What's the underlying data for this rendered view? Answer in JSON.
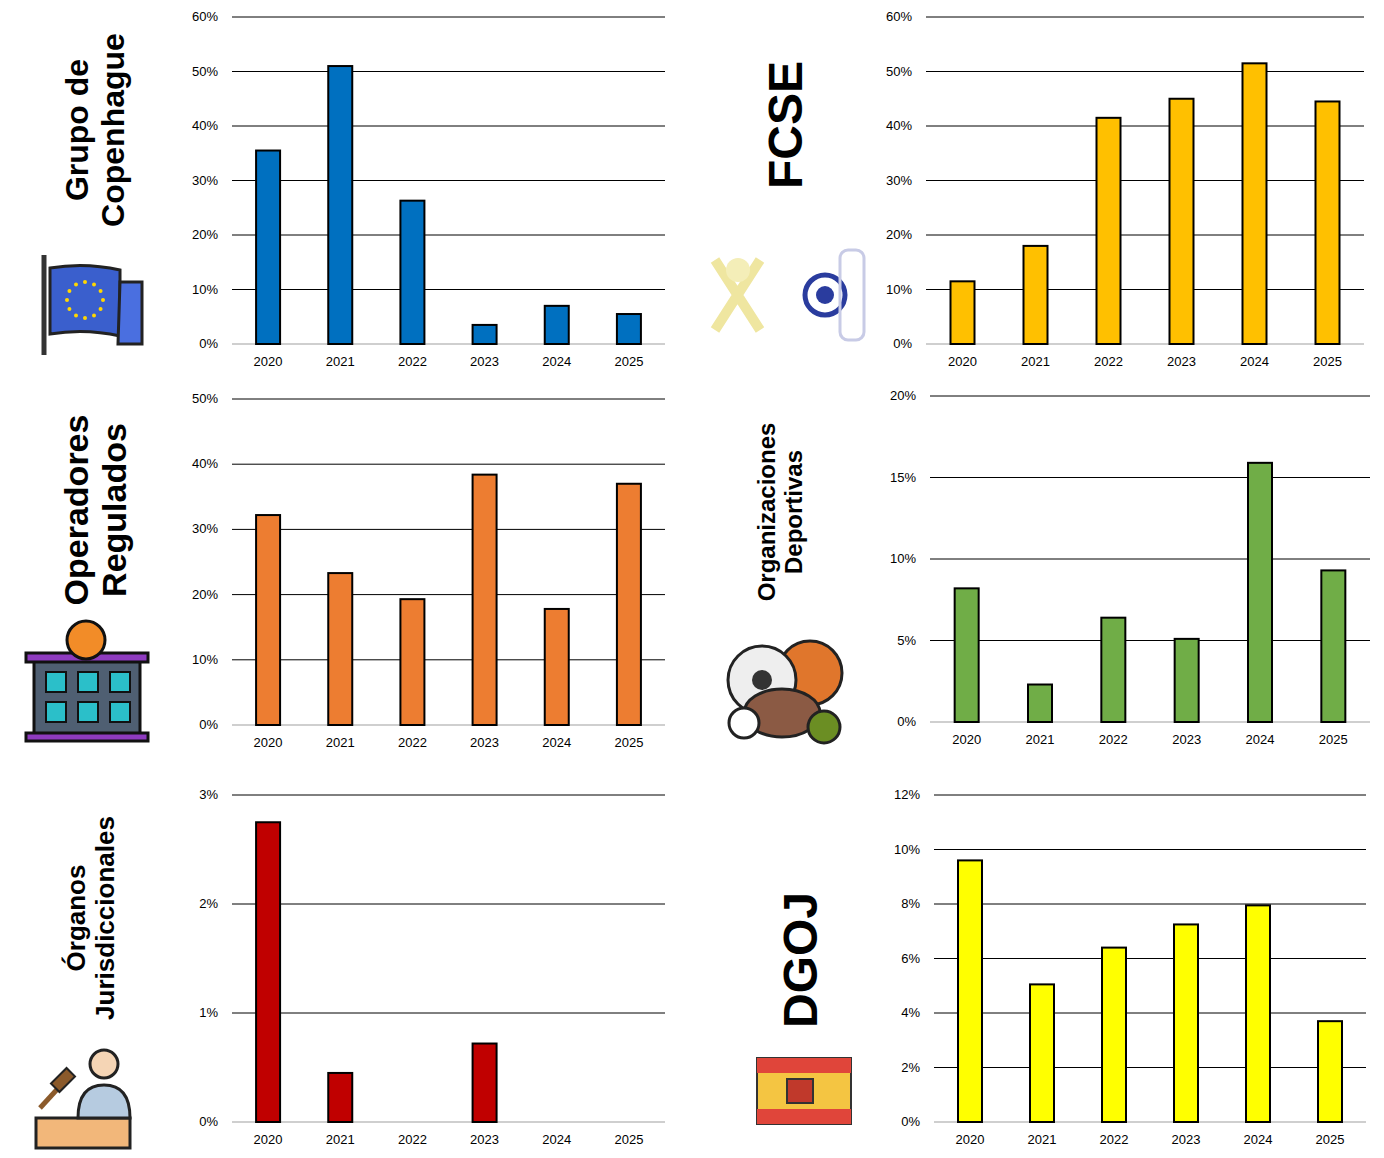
{
  "chart_data": [
    {
      "type": "bar",
      "title": "Grupo de Copenhague",
      "categories": [
        "2020",
        "2021",
        "2022",
        "2023",
        "2024",
        "2025"
      ],
      "values": [
        35.5,
        51,
        26.3,
        3.5,
        7,
        5.5
      ],
      "color": "#0070c0",
      "ylim": [
        0,
        60
      ],
      "yticks": [
        {
          "value": 0,
          "label": "0%"
        },
        {
          "value": 10,
          "label": "10%"
        },
        {
          "value": 20,
          "label": "20%"
        },
        {
          "value": 30,
          "label": "30%"
        },
        {
          "value": 40,
          "label": "40%"
        },
        {
          "value": 50,
          "label": "50%"
        },
        {
          "value": 60,
          "label": "60%"
        }
      ],
      "grid": true
    },
    {
      "type": "bar",
      "title": "FCSE",
      "categories": [
        "2020",
        "2021",
        "2022",
        "2023",
        "2024",
        "2025"
      ],
      "values": [
        11.5,
        18,
        41.5,
        45,
        51.5,
        44.5
      ],
      "color": "#ffc000",
      "ylim": [
        0,
        60
      ],
      "yticks": [
        {
          "value": 0,
          "label": "0%"
        },
        {
          "value": 10,
          "label": "10%"
        },
        {
          "value": 20,
          "label": "20%"
        },
        {
          "value": 30,
          "label": "30%"
        },
        {
          "value": 40,
          "label": "40%"
        },
        {
          "value": 50,
          "label": "50%"
        },
        {
          "value": 60,
          "label": "60%"
        }
      ],
      "grid": true
    },
    {
      "type": "bar",
      "title": "Operadores Regulados",
      "categories": [
        "2020",
        "2021",
        "2022",
        "2023",
        "2024",
        "2025"
      ],
      "values": [
        32.2,
        23.3,
        19.3,
        38.4,
        17.8,
        37
      ],
      "color": "#ed7d31",
      "ylim": [
        0,
        50
      ],
      "yticks": [
        {
          "value": 0,
          "label": "0%"
        },
        {
          "value": 10,
          "label": "10%"
        },
        {
          "value": 20,
          "label": "20%"
        },
        {
          "value": 30,
          "label": "30%"
        },
        {
          "value": 40,
          "label": "40%"
        },
        {
          "value": 50,
          "label": "50%"
        }
      ],
      "grid": true
    },
    {
      "type": "bar",
      "title": "Organizaciones Deportivas",
      "categories": [
        "2020",
        "2021",
        "2022",
        "2023",
        "2024",
        "2025"
      ],
      "values": [
        8.2,
        2.3,
        6.4,
        5.1,
        15.9,
        9.3
      ],
      "color": "#70ad47",
      "ylim": [
        0,
        20
      ],
      "yticks": [
        {
          "value": 0,
          "label": "0%"
        },
        {
          "value": 5,
          "label": "5%"
        },
        {
          "value": 10,
          "label": "10%"
        },
        {
          "value": 15,
          "label": "15%"
        },
        {
          "value": 20,
          "label": "20%"
        }
      ],
      "grid": true
    },
    {
      "type": "bar",
      "title": "Órganos Jurisdiccionales",
      "categories": [
        "2020",
        "2021",
        "2022",
        "2023",
        "2024",
        "2025"
      ],
      "values": [
        2.75,
        0.45,
        0,
        0.72,
        0,
        0
      ],
      "color": "#c00000",
      "ylim": [
        0,
        3
      ],
      "yticks": [
        {
          "value": 0,
          "label": "0%"
        },
        {
          "value": 1,
          "label": "1%"
        },
        {
          "value": 2,
          "label": "2%"
        },
        {
          "value": 3,
          "label": "3%"
        }
      ],
      "grid": true
    },
    {
      "type": "bar",
      "title": "DGOJ",
      "categories": [
        "2020",
        "2021",
        "2022",
        "2023",
        "2024",
        "2025"
      ],
      "values": [
        9.6,
        5.05,
        6.4,
        7.25,
        7.95,
        3.7
      ],
      "color": "#ffff00",
      "ylim": [
        0,
        12
      ],
      "yticks": [
        {
          "value": 0,
          "label": "0%"
        },
        {
          "value": 2,
          "label": "2%"
        },
        {
          "value": 4,
          "label": "4%"
        },
        {
          "value": 6,
          "label": "6%"
        },
        {
          "value": 8,
          "label": "8%"
        },
        {
          "value": 10,
          "label": "10%"
        },
        {
          "value": 12,
          "label": "12%"
        }
      ],
      "grid": true
    }
  ]
}
